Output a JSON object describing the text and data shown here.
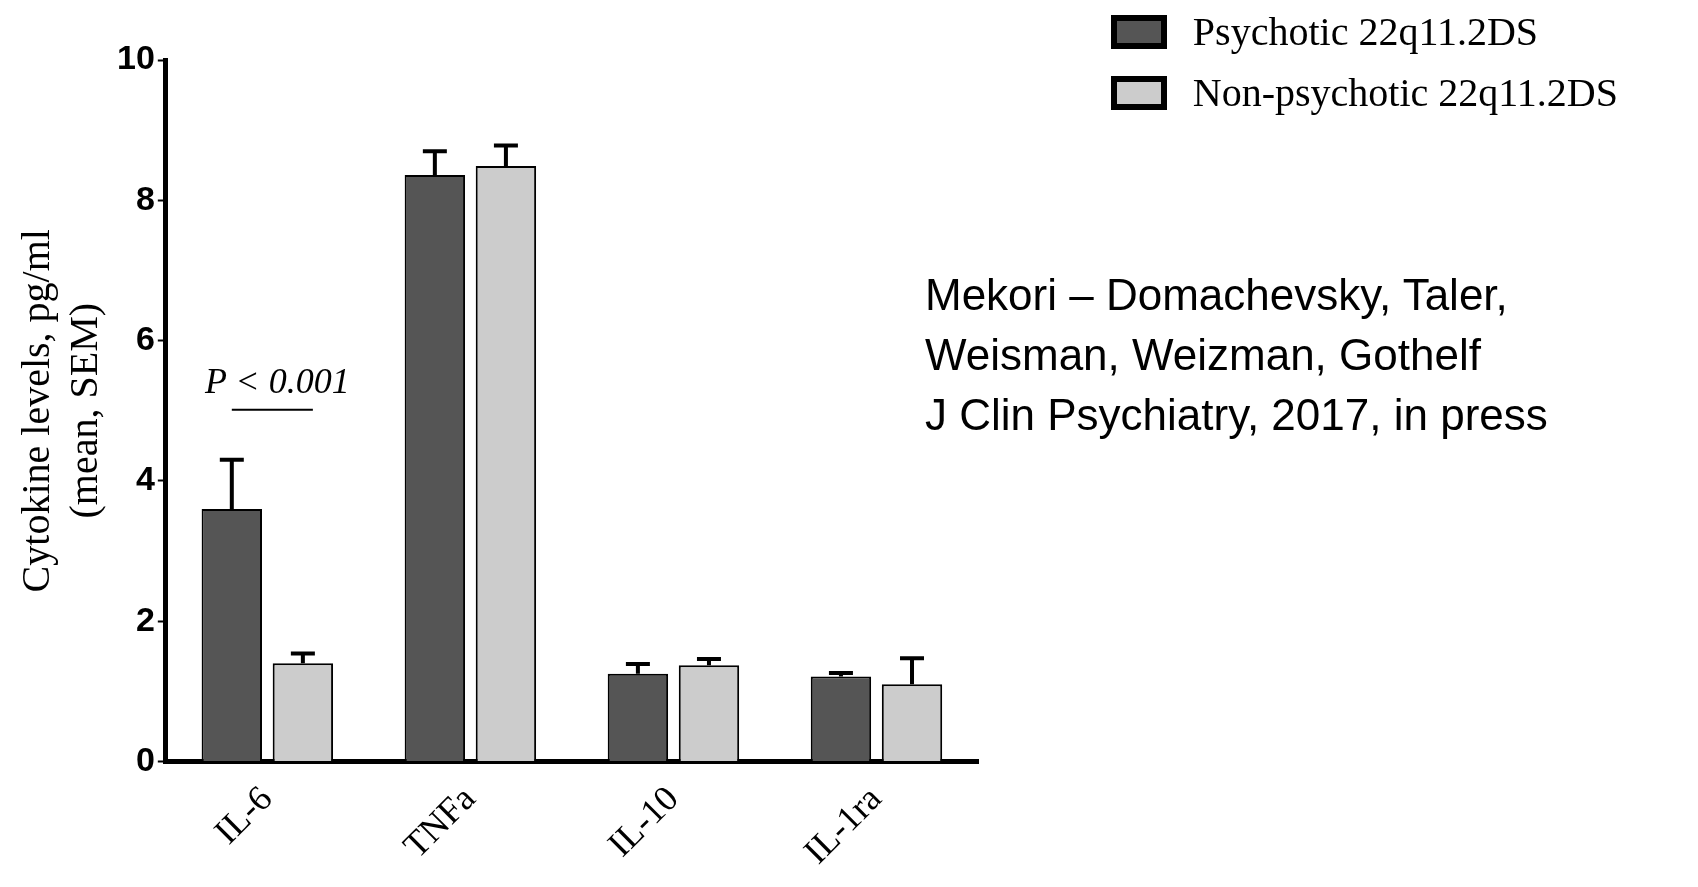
{
  "chart_data": {
    "type": "bar",
    "ylabel": "Cytokine levels, pg/ml\n(mean, SEM)",
    "categories": [
      "IL-6",
      "TNFa",
      "IL-10",
      "IL-1ra"
    ],
    "series": [
      {
        "name": "Psychotic 22q11.2DS",
        "color": "#555555",
        "values": [
          3.6,
          8.36,
          1.25,
          1.21
        ],
        "errors": [
          [
            3.6,
            4.3
          ],
          [
            8.36,
            8.7
          ],
          [
            1.25,
            1.39
          ],
          [
            1.21,
            1.26
          ]
        ]
      },
      {
        "name": "Non-psychotic 22q11.2DS",
        "color": "#cccccc",
        "values": [
          1.4,
          8.49,
          1.37,
          1.1
        ],
        "errors": [
          [
            1.4,
            1.54
          ],
          [
            8.49,
            8.78
          ],
          [
            1.37,
            1.46
          ],
          [
            1.1,
            1.47
          ]
        ]
      }
    ],
    "ylim": [
      0,
      10
    ],
    "yticks": [
      0,
      2,
      4,
      6,
      8,
      10
    ],
    "grid": false,
    "legend": "top right",
    "annotations": [
      "P < 0.001",
      "Mekori – Domachevsky, Taler,\nWeisman, Weizman, Gothelf\nJ Clin Psychiatry, 2017, in press"
    ]
  }
}
